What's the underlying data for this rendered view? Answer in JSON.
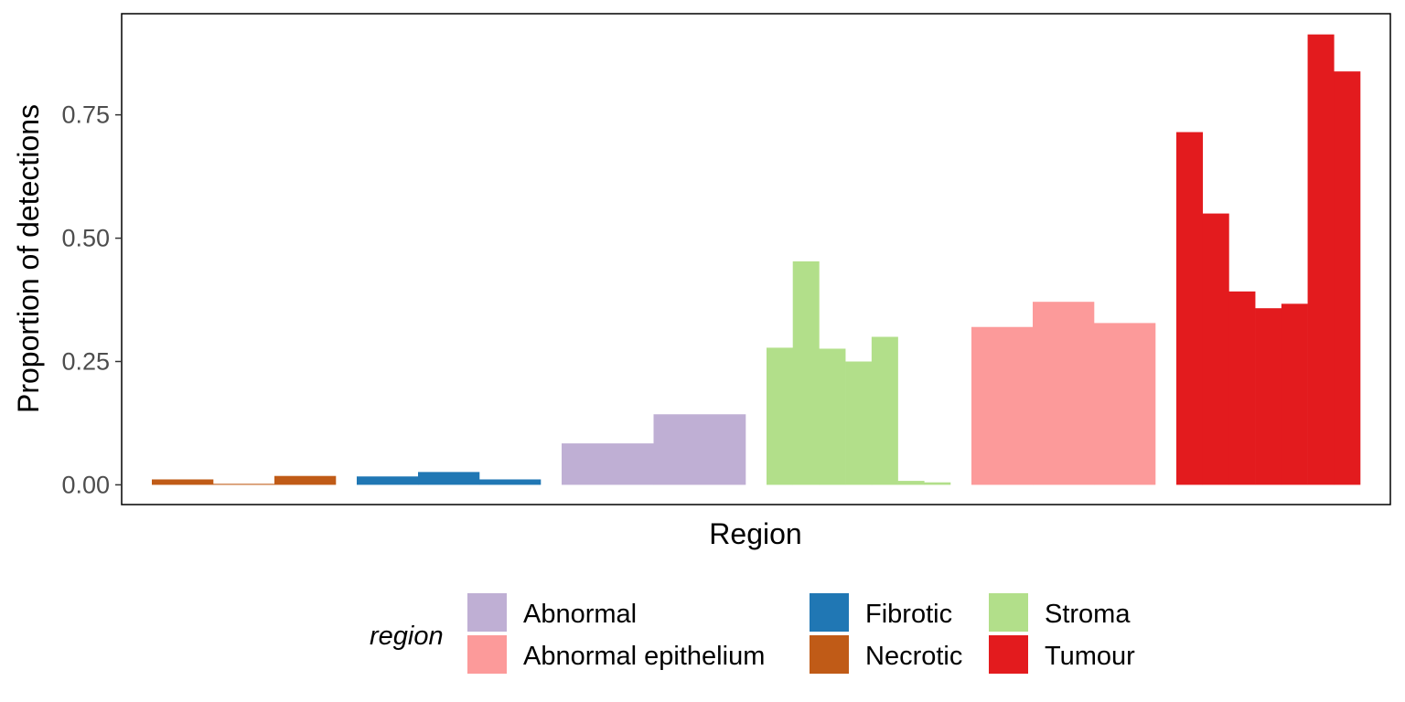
{
  "chart_data": {
    "type": "bar",
    "title": "",
    "xlabel": "Region",
    "ylabel": "Proportion of detections",
    "ylim": [
      -0.04,
      0.955
    ],
    "yticks": [
      0.0,
      0.25,
      0.5,
      0.75
    ],
    "ytick_labels": [
      "0.00",
      "0.25",
      "0.50",
      "0.75"
    ],
    "grid": false,
    "legend": {
      "title": "region",
      "placement": "bottom",
      "entries": [
        {
          "name": "Abnormal",
          "color": "#bfafd4"
        },
        {
          "name": "Abnormal epithelium",
          "color": "#fc9a9a"
        },
        {
          "name": "Fibrotic",
          "color": "#2077b4"
        },
        {
          "name": "Necrotic",
          "color": "#c05b17"
        },
        {
          "name": "Stroma",
          "color": "#b2df8a"
        },
        {
          "name": "Tumour",
          "color": "#e31b1e"
        }
      ]
    },
    "groups": [
      {
        "region": "Necrotic",
        "color": "#c05b17",
        "values": [
          0.011,
          0.002,
          0.018
        ]
      },
      {
        "region": "Fibrotic",
        "color": "#2077b4",
        "values": [
          0.017,
          0.026,
          0.011
        ]
      },
      {
        "region": "Abnormal",
        "color": "#bfafd4",
        "values": [
          0.084,
          0.143
        ]
      },
      {
        "region": "Stroma",
        "color": "#b2df8a",
        "values": [
          0.278,
          0.453,
          0.276,
          0.25,
          0.3,
          0.008,
          0.005
        ]
      },
      {
        "region": "Abnormal epithelium",
        "color": "#fc9a9a",
        "values": [
          0.32,
          0.371,
          0.328
        ]
      },
      {
        "region": "Tumour",
        "color": "#e31b1e",
        "values": [
          0.715,
          0.55,
          0.392,
          0.358,
          0.367,
          0.913,
          0.838
        ]
      }
    ]
  }
}
